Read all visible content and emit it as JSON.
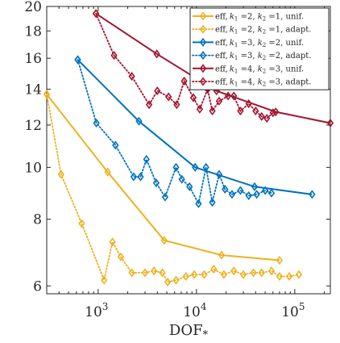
{
  "chart_data": {
    "type": "line",
    "xlabel": "DOF",
    "xlabel_sub": "*",
    "xscale": "log",
    "yscale": "log",
    "xlim": [
      300,
      230000
    ],
    "ylim": [
      5.8,
      20
    ],
    "x_ticks": [
      1000,
      10000,
      100000
    ],
    "x_tick_labels": [
      {
        "base": "10",
        "exp": "3"
      },
      {
        "base": "10",
        "exp": "4"
      },
      {
        "base": "10",
        "exp": "5"
      }
    ],
    "y_ticks": [
      6,
      8,
      10,
      12,
      14,
      16,
      18,
      20
    ],
    "y_tick_labels": [
      "6",
      "8",
      "10",
      "12",
      "14",
      "16",
      "18",
      "20"
    ],
    "grid": false,
    "legend": {
      "placement": "top-right",
      "entries": [
        {
          "prefix": "eff,",
          "k1": "2",
          "k2": "1",
          "mode": "unif."
        },
        {
          "prefix": "eff,",
          "k1": "2",
          "k2": "1",
          "mode": "adapt."
        },
        {
          "prefix": "eff,",
          "k1": "3",
          "k2": "2",
          "mode": "unif."
        },
        {
          "prefix": "eff,",
          "k1": "3",
          "k2": "2",
          "mode": "adapt."
        },
        {
          "prefix": "eff,",
          "k1": "4",
          "k2": "3",
          "mode": "unif."
        },
        {
          "prefix": "eff,",
          "k1": "4",
          "k2": "3",
          "mode": "adapt."
        }
      ]
    },
    "series": [
      {
        "color": "#EDB120",
        "style": "solid",
        "marker": "diamond",
        "x": [
          300,
          1250,
          4700,
          18000,
          70000
        ],
        "y": [
          13.7,
          9.8,
          7.3,
          6.85,
          6.7
        ]
      },
      {
        "color": "#EDB120",
        "style": "dotted",
        "marker": "diamond",
        "x": [
          300,
          420,
          680,
          1150,
          1400,
          1700,
          2200,
          3000,
          3700,
          4500,
          5100,
          6200,
          7800,
          9500,
          12000,
          15000,
          19000,
          24000,
          30000,
          38000,
          46000,
          58000,
          70000,
          88000,
          110000
        ],
        "y": [
          13.7,
          9.7,
          7.85,
          6.15,
          7.25,
          6.8,
          6.35,
          6.35,
          6.4,
          6.35,
          6.1,
          6.15,
          6.25,
          6.3,
          6.3,
          6.45,
          6.3,
          6.4,
          6.3,
          6.35,
          6.35,
          6.4,
          6.25,
          6.25,
          6.3
        ]
      },
      {
        "color": "#0072BD",
        "style": "solid",
        "marker": "diamond",
        "x": [
          620,
          2600,
          9700,
          39000,
          150000
        ],
        "y": [
          15.9,
          12.2,
          10,
          9.2,
          8.9
        ]
      },
      {
        "color": "#0072BD",
        "style": "dotted",
        "marker": "diamond",
        "x": [
          620,
          960,
          1500,
          2300,
          2700,
          3100,
          3900,
          4800,
          6200,
          7100,
          8500,
          10500,
          12500,
          14500,
          17000,
          19500,
          23000,
          28000,
          34000,
          41000,
          50000,
          58000
        ],
        "y": [
          15.9,
          12.1,
          11,
          9.6,
          9.6,
          10.35,
          9.35,
          8.8,
          10,
          9.5,
          9.2,
          8.55,
          10,
          8.6,
          9.7,
          9.1,
          8.9,
          9.05,
          8.85,
          8.9,
          9.05,
          8.95
        ]
      },
      {
        "color": "#A2142F",
        "style": "solid",
        "marker": "diamond",
        "x": [
          950,
          3950,
          16000,
          64000,
          230000
        ],
        "y": [
          19.4,
          16.3,
          13.9,
          12.7,
          12.1
        ]
      },
      {
        "color": "#A2142F",
        "style": "dotted",
        "marker": "diamond",
        "x": [
          950,
          1450,
          2200,
          3300,
          4000,
          5200,
          6300,
          7500,
          9300,
          10800,
          13000,
          14500,
          17000,
          21000,
          24000,
          28000,
          34000,
          40000,
          46000,
          52000,
          60000
        ],
        "y": [
          19.4,
          16.2,
          14.8,
          13.1,
          13.9,
          13.55,
          13.1,
          14.5,
          13.5,
          12.85,
          14.0,
          12.75,
          13.3,
          13.6,
          13.6,
          12.75,
          13.15,
          12.75,
          12.45,
          12.35,
          12.65
        ]
      }
    ]
  }
}
